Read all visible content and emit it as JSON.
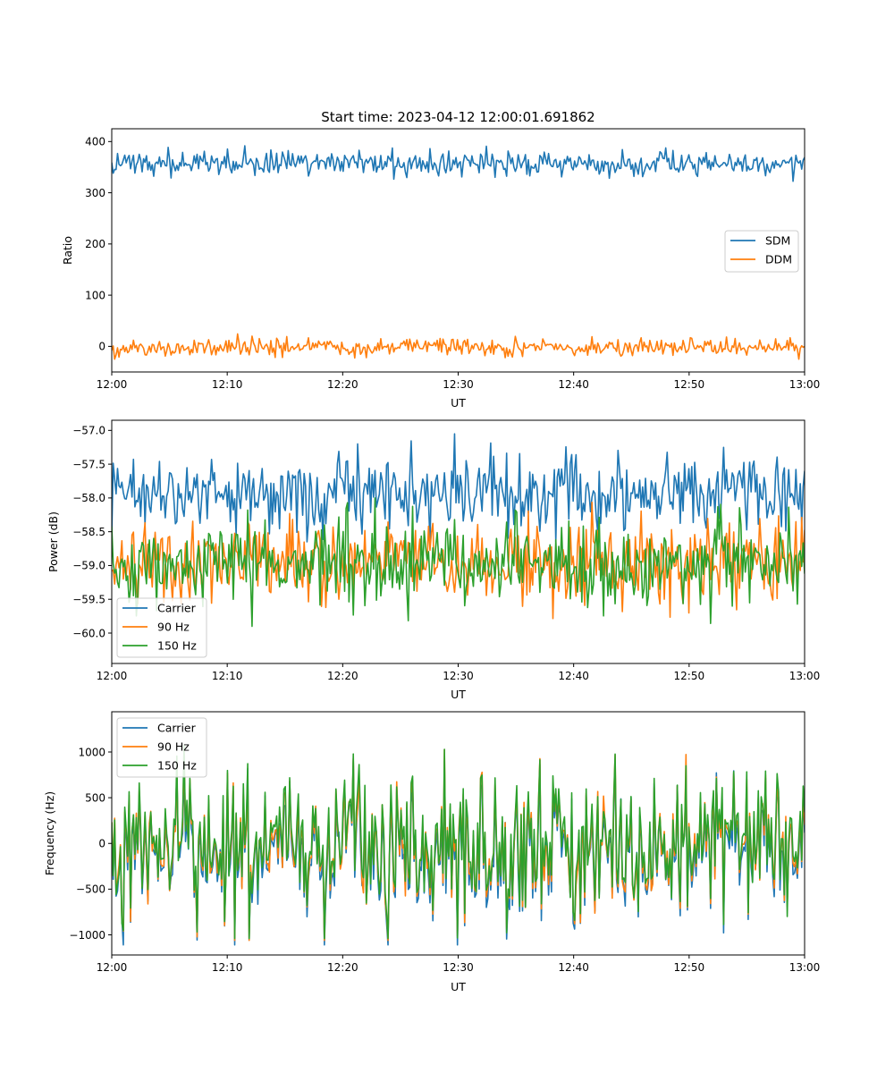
{
  "title": "Start time: 2023-04-12 12:00:01.691862",
  "chart_data": [
    {
      "type": "line",
      "xlabel": "UT",
      "ylabel": "Ratio",
      "x_ticks": [
        "12:00",
        "12:10",
        "12:20",
        "12:30",
        "12:40",
        "12:50",
        "13:00"
      ],
      "y_ticks": [
        0,
        100,
        200,
        300,
        400
      ],
      "xlim_minutes": [
        0,
        60
      ],
      "ylim": [
        -50,
        425
      ],
      "legend_position": "center-right",
      "points_per_series": 480,
      "series": [
        {
          "name": "SDM",
          "color": "#1f77b4",
          "mean": 357,
          "std": 13,
          "min": 313,
          "max": 405
        },
        {
          "name": "DDM",
          "color": "#ff7f0e",
          "mean": -2,
          "std": 9,
          "min": -25,
          "max": 30
        }
      ]
    },
    {
      "type": "line",
      "xlabel": "UT",
      "ylabel": "Power (dB)",
      "x_ticks": [
        "12:00",
        "12:10",
        "12:20",
        "12:30",
        "12:40",
        "12:50",
        "13:00"
      ],
      "y_ticks": [
        -60.0,
        -59.5,
        -59.0,
        -58.5,
        -58.0,
        -57.5,
        -57.0
      ],
      "xlim_minutes": [
        0,
        60
      ],
      "ylim": [
        -60.45,
        -56.85
      ],
      "legend_position": "lower-left",
      "points_per_series": 480,
      "series": [
        {
          "name": "Carrier",
          "color": "#1f77b4",
          "mean": -57.9,
          "std": 0.3,
          "min": -58.65,
          "max": -56.95
        },
        {
          "name": "90 Hz",
          "color": "#ff7f0e",
          "mean": -58.95,
          "std": 0.33,
          "min": -60.1,
          "max": -58.0
        },
        {
          "name": "150 Hz",
          "color": "#2ca02c",
          "mean": -58.95,
          "std": 0.33,
          "min": -60.3,
          "max": -58.0
        }
      ]
    },
    {
      "type": "line",
      "xlabel": "UT",
      "ylabel": "Frequency (Hz)",
      "x_ticks": [
        "12:00",
        "12:10",
        "12:20",
        "12:30",
        "12:40",
        "12:50",
        "13:00"
      ],
      "y_ticks": [
        -1000,
        -500,
        0,
        500,
        1000
      ],
      "xlim_minutes": [
        0,
        60
      ],
      "ylim": [
        -1220,
        1440
      ],
      "legend_position": "upper-left",
      "points_per_series": 480,
      "series": [
        {
          "name": "Carrier",
          "color": "#1f77b4",
          "mean": -40,
          "std": 380,
          "min": -1110,
          "max": 1250
        },
        {
          "name": "90 Hz",
          "color": "#ff7f0e",
          "mean": 0,
          "std": 380,
          "min": -1060,
          "max": 1290
        },
        {
          "name": "150 Hz",
          "color": "#2ca02c",
          "mean": 20,
          "std": 380,
          "min": -1040,
          "max": 1310
        }
      ]
    }
  ]
}
